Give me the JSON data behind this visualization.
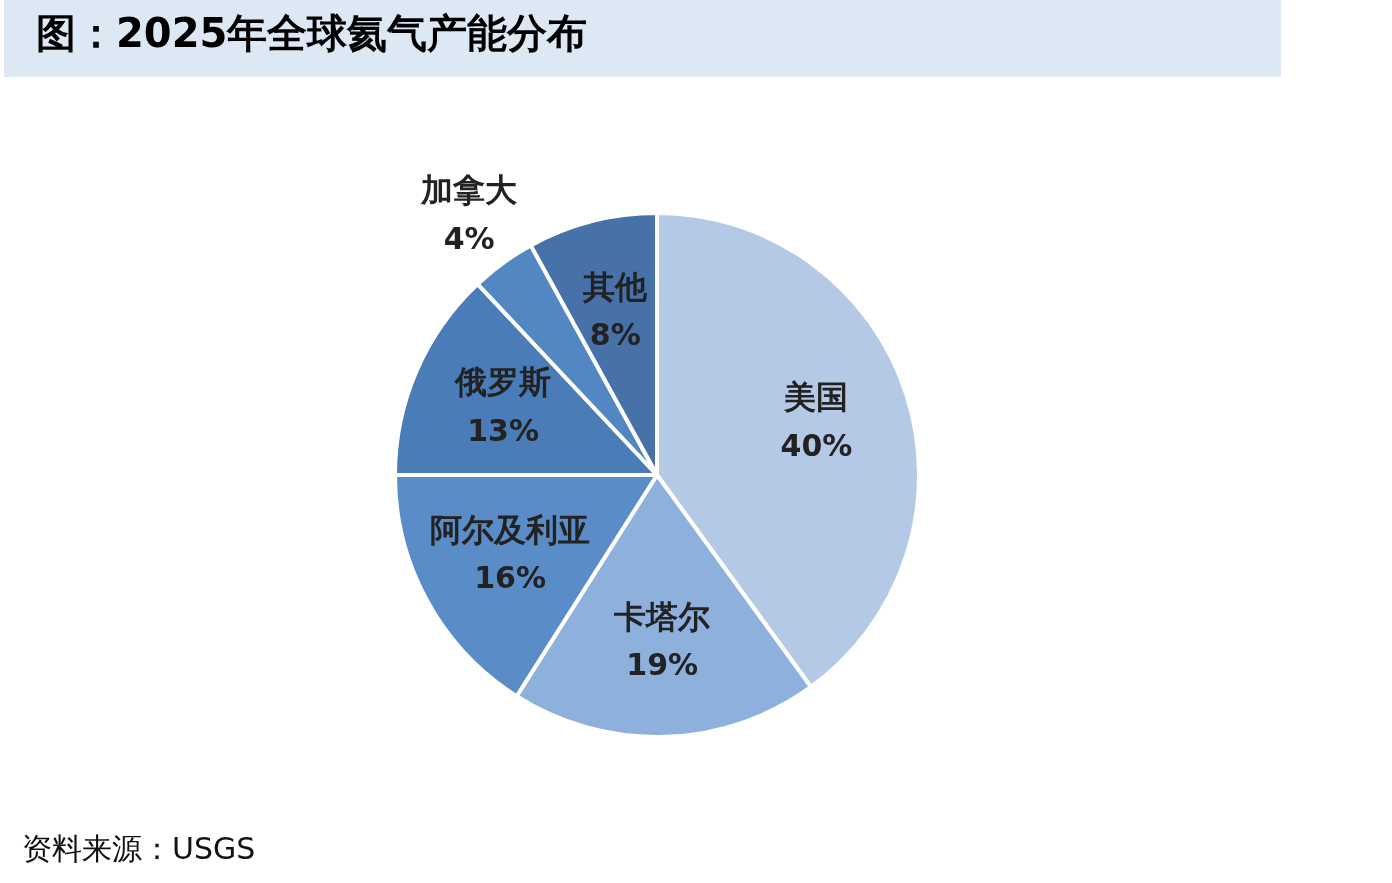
{
  "chart_data": {
    "type": "pie",
    "title": "图：2025年全球氦气产能分布",
    "categories": [
      "美国",
      "卡塔尔",
      "阿尔及利亚",
      "俄罗斯",
      "加拿大",
      "其他"
    ],
    "values": [
      40,
      19,
      16,
      13,
      4,
      8
    ],
    "value_labels": [
      "40%",
      "19%",
      "16%",
      "13%",
      "4%",
      "8%"
    ],
    "colors": [
      "#b4c9e5",
      "#8eb0dc",
      "#5a8dc8",
      "#4a7cb8",
      "#5287c4",
      "#4672a9"
    ],
    "legend": false,
    "annotations": [
      "资料来源：USGS"
    ]
  }
}
